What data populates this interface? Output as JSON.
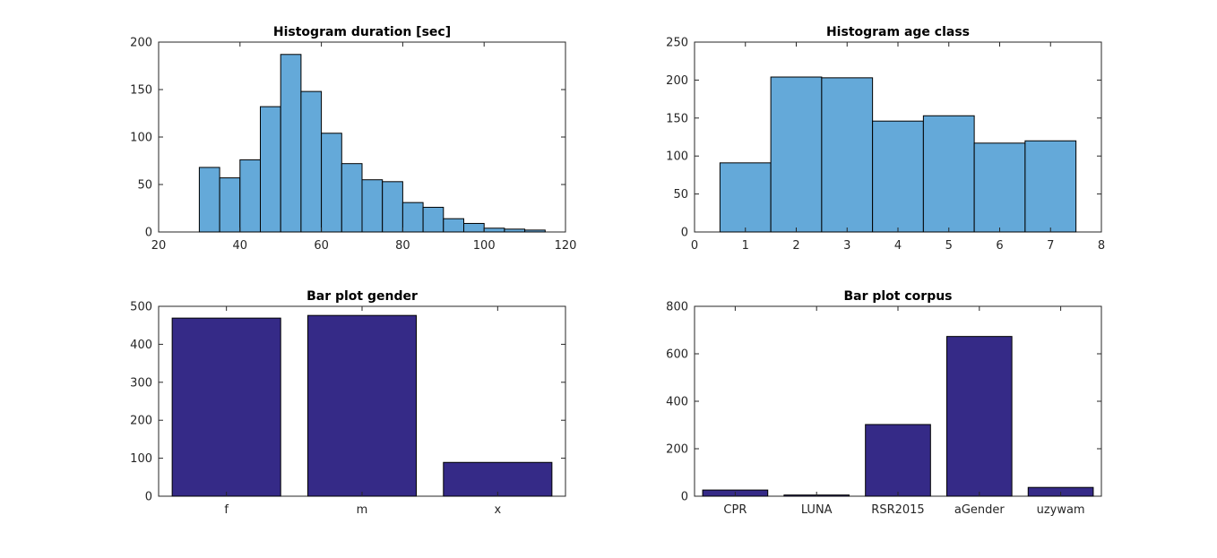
{
  "colors": {
    "histogram_fill": "#64a9d9",
    "barplot_fill": "#352a87",
    "edge": "#000000",
    "axis": "#262626"
  },
  "chart_data": [
    {
      "type": "bar",
      "title": "Histogram duration [sec]",
      "xlabel": "",
      "ylabel": "",
      "bin_edges": [
        30,
        35,
        40,
        45,
        50,
        55,
        60,
        65,
        70,
        75,
        80,
        85,
        90,
        95,
        100,
        105,
        110,
        115
      ],
      "values": [
        68,
        57,
        76,
        132,
        187,
        148,
        104,
        72,
        55,
        53,
        31,
        26,
        14,
        9,
        4,
        3,
        2
      ],
      "xlim": [
        20,
        120
      ],
      "ylim": [
        0,
        200
      ],
      "xticks": [
        20,
        40,
        60,
        80,
        100,
        120
      ],
      "yticks": [
        0,
        50,
        100,
        150,
        200
      ],
      "grid": false,
      "color": "#64a9d9"
    },
    {
      "type": "bar",
      "title": "Histogram age class",
      "xlabel": "",
      "ylabel": "",
      "bin_edges": [
        0.5,
        1.5,
        2.5,
        3.5,
        4.5,
        5.5,
        6.5,
        7.5
      ],
      "values": [
        91,
        204,
        203,
        146,
        153,
        117,
        120
      ],
      "xlim": [
        0,
        8
      ],
      "ylim": [
        0,
        250
      ],
      "xticks": [
        0,
        1,
        2,
        3,
        4,
        5,
        6,
        7,
        8
      ],
      "yticks": [
        0,
        50,
        100,
        150,
        200,
        250
      ],
      "grid": false,
      "color": "#64a9d9"
    },
    {
      "type": "bar",
      "title": "Bar plot gender",
      "xlabel": "",
      "ylabel": "",
      "categories": [
        "f",
        "m",
        "x"
      ],
      "values": [
        469,
        476,
        89
      ],
      "ylim": [
        0,
        500
      ],
      "yticks": [
        0,
        100,
        200,
        300,
        400,
        500
      ],
      "grid": false,
      "color": "#352a87"
    },
    {
      "type": "bar",
      "title": "Bar plot corpus",
      "xlabel": "",
      "ylabel": "",
      "categories": [
        "CPR",
        "LUNA",
        "RSR2015",
        "aGender",
        "uzywam"
      ],
      "values": [
        26,
        5,
        302,
        673,
        37
      ],
      "ylim": [
        0,
        800
      ],
      "yticks": [
        0,
        200,
        400,
        600,
        800
      ],
      "grid": false,
      "color": "#352a87"
    }
  ]
}
